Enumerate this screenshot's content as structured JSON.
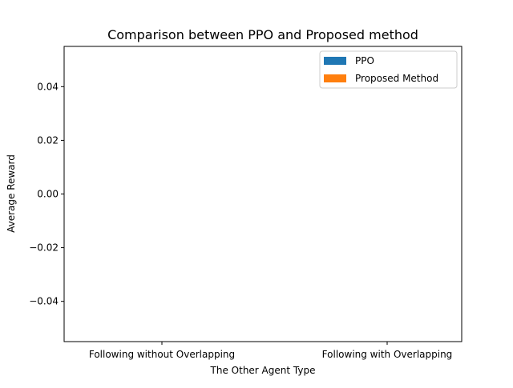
{
  "chart_data": {
    "type": "bar",
    "title": "Comparison between PPO and Proposed method",
    "xlabel": "The Other Agent Type",
    "ylabel": "Average Reward",
    "categories": [
      "Following without Overlapping",
      "Following with Overlapping"
    ],
    "series": [
      {
        "name": "PPO",
        "values": [
          0,
          0
        ],
        "color": "#1f77b4"
      },
      {
        "name": "Proposed Method",
        "values": [
          0,
          0
        ],
        "color": "#ff7f0e"
      }
    ],
    "ylim": [
      -0.055,
      0.055
    ],
    "yticks": [
      0.04,
      0.02,
      0.0,
      -0.02,
      -0.04
    ],
    "ytick_labels": [
      "0.04",
      "0.02",
      "0.00",
      "−0.02",
      "−0.04"
    ],
    "grid": false,
    "legend_position": "top-right"
  }
}
